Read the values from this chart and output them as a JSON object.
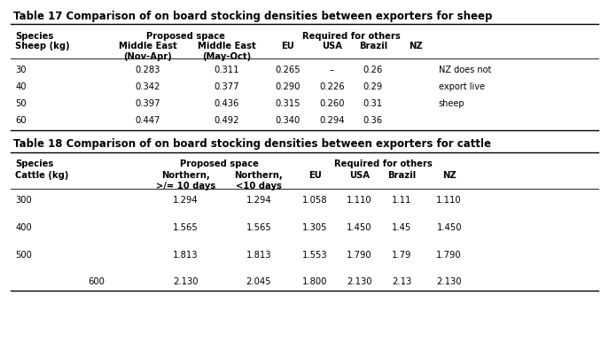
{
  "table17_title": "Table 17 Comparison of on board stocking densities between exporters for sheep",
  "table18_title": "Table 18 Comparison of on board stocking densities between exporters for cattle",
  "sheep_rows": [
    [
      "30",
      "0.283",
      "0.311",
      "0.265",
      "–",
      "0.26",
      "NZ does not"
    ],
    [
      "40",
      "0.342",
      "0.377",
      "0.290",
      "0.226",
      "0.29",
      "export live"
    ],
    [
      "50",
      "0.397",
      "0.436",
      "0.315",
      "0.260",
      "0.31",
      "sheep"
    ],
    [
      "60",
      "0.447",
      "0.492",
      "0.340",
      "0.294",
      "0.36",
      ""
    ]
  ],
  "cattle_rows": [
    [
      "300",
      "",
      "1.294",
      "1.294",
      "1.058",
      "1.110",
      "1.11",
      "1.110"
    ],
    [
      "400",
      "",
      "1.565",
      "1.565",
      "1.305",
      "1.450",
      "1.45",
      "1.450"
    ],
    [
      "500",
      "",
      "1.813",
      "1.813",
      "1.553",
      "1.790",
      "1.79",
      "1.790"
    ],
    [
      "",
      "600",
      "2.130",
      "2.045",
      "1.800",
      "2.130",
      "2.13",
      "2.130"
    ]
  ],
  "bg_color": "#ffffff",
  "text_color": "#000000",
  "title_fontsize": 8.5,
  "header_fontsize": 7.2,
  "cell_fontsize": 7.2,
  "small_fontsize": 7.0,
  "fig_width": 6.87,
  "fig_height": 3.86,
  "dpi": 100
}
